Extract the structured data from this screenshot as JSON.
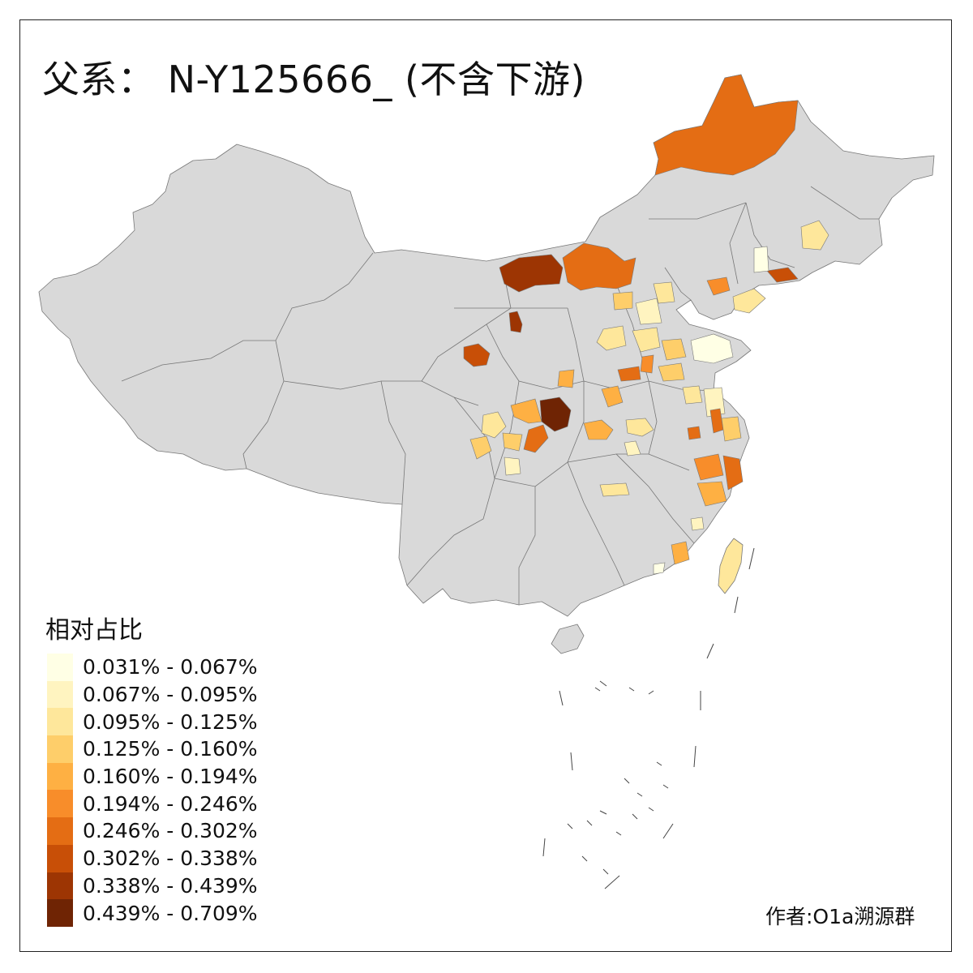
{
  "title": "父系： N-Y125666_ (不含下游)",
  "legend": {
    "title": "相对占比",
    "items": [
      {
        "label": "0.031% - 0.067%",
        "color": "#ffffe5"
      },
      {
        "label": "0.067% - 0.095%",
        "color": "#fff4c0"
      },
      {
        "label": "0.095% - 0.125%",
        "color": "#fee79b"
      },
      {
        "label": "0.125% - 0.160%",
        "color": "#fece6a"
      },
      {
        "label": "0.160% - 0.194%",
        "color": "#feb043"
      },
      {
        "label": "0.194% - 0.246%",
        "color": "#f88d2a"
      },
      {
        "label": "0.246% - 0.302%",
        "color": "#e46d14"
      },
      {
        "label": "0.302% - 0.338%",
        "color": "#c84f07"
      },
      {
        "label": "0.338% - 0.439%",
        "color": "#9d3503"
      },
      {
        "label": "0.439% - 0.709%",
        "color": "#6f2404"
      }
    ]
  },
  "credit": "作者:O1a溯源群",
  "colors": {
    "base_land": "#d9d9d9",
    "border": "#777777",
    "frame": "#222222"
  }
}
